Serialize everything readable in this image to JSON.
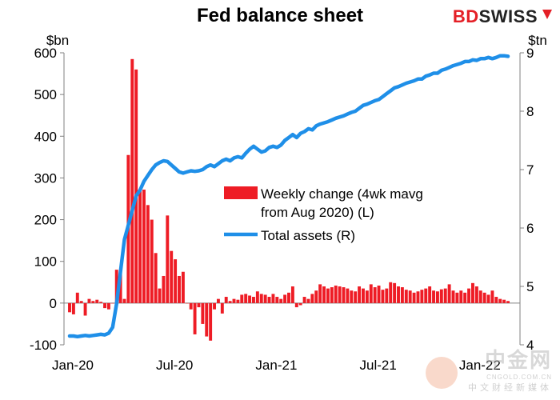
{
  "chart_data": {
    "type": "bar+line",
    "title": "Fed balance sheet",
    "left_axis": {
      "unit": "$bn",
      "min": -100,
      "max": 600,
      "ticks": [
        -100,
        0,
        100,
        200,
        300,
        400,
        500,
        600
      ]
    },
    "right_axis": {
      "unit": "$tn",
      "min": 4,
      "max": 9,
      "ticks": [
        4,
        5,
        6,
        7,
        8,
        9
      ]
    },
    "x_axis": {
      "ticks": [
        "Jan-20",
        "Jul-20",
        "Jan-21",
        "Jul-21",
        "Jan-22"
      ],
      "tick_weeks": [
        0,
        26,
        52,
        78,
        104
      ],
      "num_weeks": 113
    },
    "legend": [
      {
        "label_lines": [
          "Weekly change (4wk mavg",
          "from Aug 2020) (L)"
        ],
        "color": "#ee1c25",
        "kind": "bar"
      },
      {
        "label_lines": [
          "Total assets (R)"
        ],
        "color": "#1f8fe8",
        "kind": "line"
      }
    ],
    "series": [
      {
        "name": "Weekly change (4wk mavg from Aug 2020) (L)",
        "axis": "left",
        "color": "#ee1c25",
        "values": [
          -22,
          -27,
          25,
          5,
          -30,
          10,
          5,
          8,
          3,
          -12,
          -15,
          0,
          80,
          72,
          10,
          355,
          585,
          560,
          270,
          272,
          235,
          200,
          120,
          35,
          65,
          210,
          125,
          105,
          65,
          75,
          0,
          -15,
          -75,
          -10,
          -50,
          -80,
          -90,
          -15,
          10,
          -25,
          15,
          5,
          10,
          8,
          20,
          22,
          18,
          15,
          28,
          22,
          20,
          15,
          22,
          15,
          10,
          20,
          25,
          40,
          -10,
          -5,
          15,
          10,
          22,
          30,
          45,
          40,
          35,
          38,
          42,
          40,
          38,
          35,
          30,
          28,
          40,
          35,
          30,
          45,
          38,
          42,
          32,
          35,
          50,
          48,
          40,
          38,
          32,
          30,
          25,
          28,
          32,
          35,
          40,
          30,
          28,
          33,
          35,
          45,
          30,
          25,
          30,
          25,
          35,
          48,
          40,
          30,
          25,
          20,
          30,
          15,
          10,
          8,
          5
        ]
      },
      {
        "name": "Total assets (R)",
        "axis": "right",
        "color": "#1f8fe8",
        "values": [
          4.15,
          4.15,
          4.14,
          4.15,
          4.16,
          4.15,
          4.16,
          4.17,
          4.18,
          4.17,
          4.2,
          4.3,
          4.7,
          5.25,
          5.8,
          6.05,
          6.3,
          6.55,
          6.65,
          6.8,
          6.9,
          7.0,
          7.08,
          7.12,
          7.15,
          7.14,
          7.08,
          7.02,
          6.96,
          6.94,
          6.96,
          6.98,
          6.97,
          6.98,
          7.0,
          7.05,
          7.08,
          7.05,
          7.1,
          7.15,
          7.18,
          7.15,
          7.2,
          7.22,
          7.2,
          7.28,
          7.35,
          7.4,
          7.35,
          7.3,
          7.32,
          7.38,
          7.4,
          7.38,
          7.42,
          7.5,
          7.55,
          7.6,
          7.55,
          7.62,
          7.65,
          7.7,
          7.68,
          7.75,
          7.78,
          7.8,
          7.82,
          7.85,
          7.88,
          7.9,
          7.92,
          7.95,
          7.98,
          8.0,
          8.05,
          8.1,
          8.12,
          8.15,
          8.18,
          8.2,
          8.25,
          8.3,
          8.35,
          8.4,
          8.42,
          8.45,
          8.48,
          8.5,
          8.52,
          8.55,
          8.55,
          8.6,
          8.62,
          8.65,
          8.65,
          8.7,
          8.72,
          8.75,
          8.78,
          8.8,
          8.82,
          8.85,
          8.85,
          8.88,
          8.87,
          8.9,
          8.9,
          8.92,
          8.9,
          8.92,
          8.95,
          8.95,
          8.94
        ]
      }
    ]
  },
  "brand": {
    "bd": "BD",
    "swiss": "SWISS"
  },
  "watermark": {
    "main": "中金网",
    "sub": "CNGOLD.COM.CN",
    "cn": "中文财经新媒体"
  },
  "colors": {
    "bar": "#ee1c25",
    "line": "#1f8fe8",
    "axis": "#808080"
  }
}
